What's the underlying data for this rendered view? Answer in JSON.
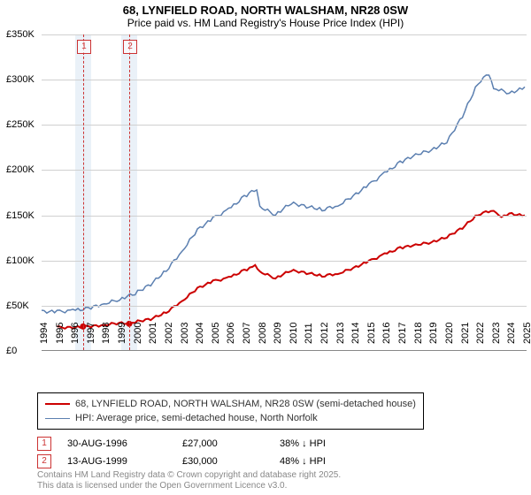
{
  "title": "68, LYNFIELD ROAD, NORTH WALSHAM, NR28 0SW",
  "subtitle": "Price paid vs. HM Land Registry's House Price Index (HPI)",
  "chart": {
    "type": "line",
    "background_color": "#ffffff",
    "grid_color": "#d0d0d0",
    "x": {
      "min": 1994,
      "max": 2025,
      "ticks": [
        1994,
        1995,
        1996,
        1997,
        1998,
        1999,
        2000,
        2001,
        2002,
        2003,
        2004,
        2005,
        2006,
        2007,
        2008,
        2009,
        2010,
        2011,
        2012,
        2013,
        2014,
        2015,
        2016,
        2017,
        2018,
        2019,
        2020,
        2021,
        2022,
        2023,
        2024,
        2025
      ]
    },
    "y": {
      "min": 0,
      "max": 350000,
      "tick_step": 50000,
      "tick_labels": [
        "£0",
        "£50K",
        "£100K",
        "£150K",
        "£200K",
        "£250K",
        "£300K",
        "£350K"
      ]
    },
    "series": {
      "price_paid": {
        "label": "68, LYNFIELD ROAD, NORTH WALSHAM, NR28 0SW (semi-detached house)",
        "color": "#cc0000",
        "width": 2,
        "points": [
          [
            1995,
            27000
          ],
          [
            1996.66,
            27000
          ],
          [
            1997,
            27500
          ],
          [
            1998,
            28500
          ],
          [
            1999.62,
            30000
          ],
          [
            2000,
            31000
          ],
          [
            2001,
            34000
          ],
          [
            2002,
            42000
          ],
          [
            2003,
            55000
          ],
          [
            2004,
            70000
          ],
          [
            2005,
            78000
          ],
          [
            2006,
            82000
          ],
          [
            2007,
            90000
          ],
          [
            2007.7,
            95000
          ],
          [
            2008,
            88000
          ],
          [
            2009,
            80000
          ],
          [
            2010,
            88000
          ],
          [
            2011,
            85000
          ],
          [
            2012,
            82000
          ],
          [
            2013,
            85000
          ],
          [
            2014,
            92000
          ],
          [
            2015,
            100000
          ],
          [
            2016,
            108000
          ],
          [
            2017,
            115000
          ],
          [
            2018,
            118000
          ],
          [
            2019,
            120000
          ],
          [
            2020,
            125000
          ],
          [
            2021,
            135000
          ],
          [
            2022,
            150000
          ],
          [
            2023,
            155000
          ],
          [
            2023.5,
            148000
          ],
          [
            2024,
            152000
          ],
          [
            2025,
            150000
          ]
        ]
      },
      "hpi": {
        "label": "HPI: Average price, semi-detached house, North Norfolk",
        "color": "#5b7fb0",
        "width": 1.5,
        "points": [
          [
            1994,
            45000
          ],
          [
            1995,
            45000
          ],
          [
            1996,
            46000
          ],
          [
            1997,
            48000
          ],
          [
            1998,
            52000
          ],
          [
            1999,
            56000
          ],
          [
            2000,
            62000
          ],
          [
            2001,
            72000
          ],
          [
            2002,
            88000
          ],
          [
            2003,
            110000
          ],
          [
            2004,
            135000
          ],
          [
            2005,
            148000
          ],
          [
            2006,
            158000
          ],
          [
            2007,
            172000
          ],
          [
            2007.8,
            178000
          ],
          [
            2008,
            160000
          ],
          [
            2009,
            150000
          ],
          [
            2010,
            162000
          ],
          [
            2011,
            158000
          ],
          [
            2012,
            155000
          ],
          [
            2013,
            160000
          ],
          [
            2014,
            172000
          ],
          [
            2015,
            185000
          ],
          [
            2016,
            198000
          ],
          [
            2017,
            210000
          ],
          [
            2018,
            218000
          ],
          [
            2019,
            222000
          ],
          [
            2020,
            230000
          ],
          [
            2021,
            258000
          ],
          [
            2022,
            295000
          ],
          [
            2022.7,
            305000
          ],
          [
            2023,
            290000
          ],
          [
            2024,
            285000
          ],
          [
            2025,
            292000
          ]
        ]
      }
    },
    "sale_markers": [
      {
        "n": "1",
        "year": 1996.66
      },
      {
        "n": "2",
        "year": 1999.62
      }
    ],
    "marker_band_color": "#eaf1f8",
    "marker_line_color": "#cc3333"
  },
  "legend": [
    {
      "color": "#cc0000",
      "width": 2,
      "text": "68, LYNFIELD ROAD, NORTH WALSHAM, NR28 0SW (semi-detached house)"
    },
    {
      "color": "#5b7fb0",
      "width": 1.5,
      "text": "HPI: Average price, semi-detached house, North Norfolk"
    }
  ],
  "sales": [
    {
      "n": "1",
      "date": "30-AUG-1996",
      "price": "£27,000",
      "delta": "38% ↓ HPI"
    },
    {
      "n": "2",
      "date": "13-AUG-1999",
      "price": "£30,000",
      "delta": "48% ↓ HPI"
    }
  ],
  "footnote_l1": "Contains HM Land Registry data © Crown copyright and database right 2025.",
  "footnote_l2": "This data is licensed under the Open Government Licence v3.0."
}
